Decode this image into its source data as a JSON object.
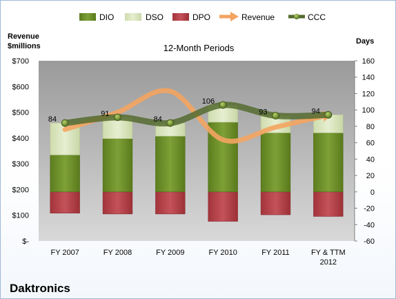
{
  "company": "Daktronics",
  "colors": {
    "dio": "#6b8e23",
    "dso": "#d7e4b8",
    "dpo": "#b9434a",
    "revenue": "#f4a460",
    "ccc": "#556b2f",
    "plot_bg": "#c0c0c0"
  },
  "chart_data": {
    "type": "bar",
    "title": "12-Month Periods",
    "left_axis_title_line1": "Revenue",
    "left_axis_title_line2": "$millions",
    "right_axis_title": "Days",
    "categories": [
      "FY 2007",
      "FY 2008",
      "FY 2009",
      "FY 2010",
      "FY 2011",
      "FY & TTM 2012"
    ],
    "left_ylim": [
      0,
      700
    ],
    "left_ticks": [
      "$-",
      "$100",
      "$200",
      "$300",
      "$400",
      "$500",
      "$600",
      "$700"
    ],
    "right_ylim": [
      -60,
      160
    ],
    "right_ticks": [
      "-60",
      "-40",
      "-20",
      "0",
      "20",
      "40",
      "60",
      "80",
      "100",
      "120",
      "140",
      "160"
    ],
    "grid": false,
    "legend_position": "top",
    "series": [
      {
        "name": "DIO",
        "axis": "right",
        "kind": "stacked-bar",
        "values": [
          45,
          65,
          68,
          85,
          72,
          72
        ]
      },
      {
        "name": "DSO",
        "axis": "right",
        "kind": "stacked-bar",
        "values": [
          39,
          26,
          16,
          21,
          21,
          22
        ]
      },
      {
        "name": "DPO",
        "axis": "right",
        "kind": "negative-bar",
        "values": [
          -26,
          -27,
          -27,
          -36,
          -28,
          -30
        ]
      },
      {
        "name": "Revenue",
        "axis": "left",
        "kind": "line",
        "values": [
          433,
          500,
          582,
          393,
          442,
          489
        ]
      },
      {
        "name": "CCC",
        "axis": "right",
        "kind": "line",
        "values": [
          84,
          91,
          84,
          106,
          93,
          94
        ]
      }
    ],
    "data_labels": [
      "84",
      "91",
      "84",
      "106",
      "93",
      "94"
    ]
  }
}
